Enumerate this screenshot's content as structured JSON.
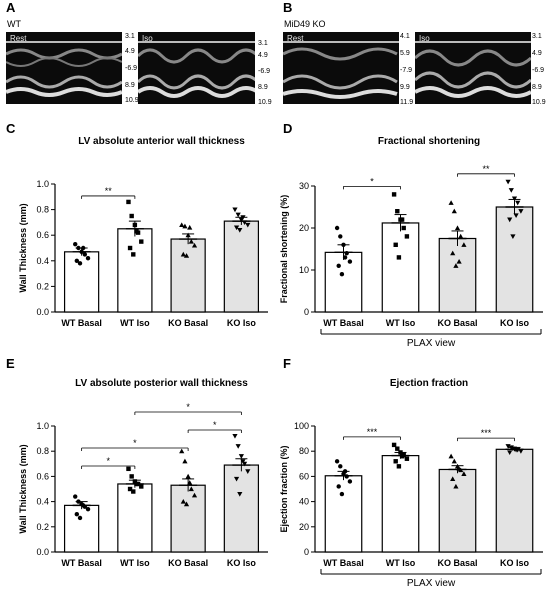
{
  "panels": {
    "A": {
      "letter": "A",
      "condition": "WT",
      "stages": [
        "Rest",
        "Iso"
      ],
      "scales": [
        [
          "3.1",
          "4.9",
          "-6.9",
          "8.9",
          "10.9"
        ],
        [
          "3.1",
          "4.9",
          "-6.9",
          "8.9",
          "10.9"
        ]
      ]
    },
    "B": {
      "letter": "B",
      "condition": "MiD49 KO",
      "stages": [
        "Rest",
        "Iso"
      ],
      "scales": [
        [
          "4.1",
          "5.9",
          "-7.9",
          "9.9",
          "11.9"
        ],
        [
          "3.1",
          "4.9",
          "-6.9",
          "8.9",
          "10.9"
        ]
      ]
    }
  },
  "chart_data": [
    {
      "letter": "C",
      "type": "bar",
      "title": "LV absolute anterior wall thickness",
      "ylabel": "Wall Thickness (mm)",
      "xlabel": "",
      "categories": [
        "WT Basal",
        "WT Iso",
        "KO Basal",
        "KO Iso"
      ],
      "values": [
        0.47,
        0.65,
        0.57,
        0.71
      ],
      "errors": [
        0.03,
        0.06,
        0.04,
        0.03
      ],
      "fills": [
        "#ffffff",
        "#ffffff",
        "#e3e3e3",
        "#e3e3e3"
      ],
      "ylim": [
        0,
        1.0
      ],
      "yticks": [
        "0.0",
        "0.2",
        "0.4",
        "0.6",
        "0.8",
        "1.0"
      ],
      "points": [
        [
          0.53,
          0.5,
          0.47,
          0.45,
          0.42,
          0.4,
          0.38,
          0.5
        ],
        [
          0.86,
          0.75,
          0.68,
          0.62,
          0.55,
          0.5,
          0.45,
          0.63
        ],
        [
          0.68,
          0.67,
          0.6,
          0.55,
          0.52,
          0.45,
          0.44,
          0.66
        ],
        [
          0.8,
          0.76,
          0.72,
          0.7,
          0.68,
          0.66,
          0.64,
          0.74
        ]
      ],
      "markers": [
        "circle",
        "square",
        "triangle",
        "triangle-down"
      ],
      "significance": [
        {
          "from": 0,
          "to": 1,
          "label": "**"
        }
      ],
      "grouping": ""
    },
    {
      "letter": "D",
      "type": "bar",
      "title": "Fractional shortening",
      "ylabel": "Fractional shortening (%)",
      "xlabel": "",
      "categories": [
        "WT Basal",
        "WT Iso",
        "KO Basal",
        "KO Iso"
      ],
      "values": [
        14.2,
        21.2,
        17.5,
        25.0
      ],
      "errors": [
        1.8,
        2.0,
        1.8,
        1.8
      ],
      "fills": [
        "#ffffff",
        "#ffffff",
        "#e3e3e3",
        "#e3e3e3"
      ],
      "ylim": [
        0,
        30
      ],
      "yticks": [
        "0",
        "10",
        "20",
        "30"
      ],
      "points": [
        [
          20,
          18,
          16,
          14,
          12,
          11,
          9,
          13
        ],
        [
          28,
          24,
          22,
          20,
          18,
          16,
          13,
          22
        ],
        [
          26,
          24,
          20,
          18,
          16,
          14,
          11,
          12
        ],
        [
          31,
          29,
          27,
          26,
          24,
          22,
          18,
          23
        ]
      ],
      "markers": [
        "circle",
        "square",
        "triangle",
        "triangle-down"
      ],
      "significance": [
        {
          "from": 0,
          "to": 1,
          "label": "*"
        },
        {
          "from": 2,
          "to": 3,
          "label": "**"
        }
      ],
      "grouping": "PLAX view"
    },
    {
      "letter": "E",
      "type": "bar",
      "title": "LV absolute posterior wall thickness",
      "ylabel": "Wall Thickness (mm)",
      "xlabel": "",
      "categories": [
        "WT Basal",
        "WT Iso",
        "KO Basal",
        "KO Iso"
      ],
      "values": [
        0.37,
        0.54,
        0.53,
        0.69
      ],
      "errors": [
        0.03,
        0.03,
        0.05,
        0.05
      ],
      "fills": [
        "#ffffff",
        "#ffffff",
        "#e3e3e3",
        "#e3e3e3"
      ],
      "ylim": [
        0,
        1.0
      ],
      "yticks": [
        "0.0",
        "0.2",
        "0.4",
        "0.6",
        "0.8",
        "1.0"
      ],
      "points": [
        [
          0.44,
          0.4,
          0.38,
          0.36,
          0.34,
          0.3,
          0.27,
          0.37
        ],
        [
          0.66,
          0.6,
          0.56,
          0.54,
          0.52,
          0.5,
          0.48,
          0.54
        ],
        [
          0.8,
          0.72,
          0.6,
          0.5,
          0.45,
          0.4,
          0.38,
          0.55
        ],
        [
          0.92,
          0.84,
          0.76,
          0.7,
          0.64,
          0.58,
          0.46,
          0.72
        ]
      ],
      "markers": [
        "circle",
        "square",
        "triangle",
        "triangle-down"
      ],
      "significance": [
        {
          "from": 1,
          "to": 3,
          "label": "*"
        },
        {
          "from": 2,
          "to": 3,
          "label": "*"
        },
        {
          "from": 0,
          "to": 2,
          "label": "*"
        },
        {
          "from": 0,
          "to": 1,
          "label": "*"
        }
      ],
      "grouping": ""
    },
    {
      "letter": "F",
      "type": "bar",
      "title": "Ejection fraction",
      "ylabel": "Ejection fraction (%)",
      "xlabel": "",
      "categories": [
        "WT Basal",
        "WT Iso",
        "KO Basal",
        "KO Iso"
      ],
      "values": [
        60.5,
        76.5,
        65.5,
        81.5
      ],
      "errors": [
        3.5,
        2.5,
        3.0,
        1.5
      ],
      "fills": [
        "#ffffff",
        "#ffffff",
        "#e3e3e3",
        "#e3e3e3"
      ],
      "ylim": [
        0,
        100
      ],
      "yticks": [
        "0",
        "20",
        "40",
        "60",
        "80",
        "100"
      ],
      "points": [
        [
          72,
          68,
          62,
          60,
          56,
          52,
          46,
          64
        ],
        [
          85,
          82,
          79,
          77,
          74,
          72,
          68,
          76
        ],
        [
          76,
          72,
          68,
          65,
          62,
          58,
          52,
          66
        ],
        [
          84,
          83,
          82,
          81,
          80,
          79,
          82,
          81
        ]
      ],
      "markers": [
        "circle",
        "square",
        "triangle",
        "triangle-down"
      ],
      "significance": [
        {
          "from": 0,
          "to": 1,
          "label": "***"
        },
        {
          "from": 2,
          "to": 3,
          "label": "***"
        }
      ],
      "grouping": "PLAX view"
    }
  ]
}
